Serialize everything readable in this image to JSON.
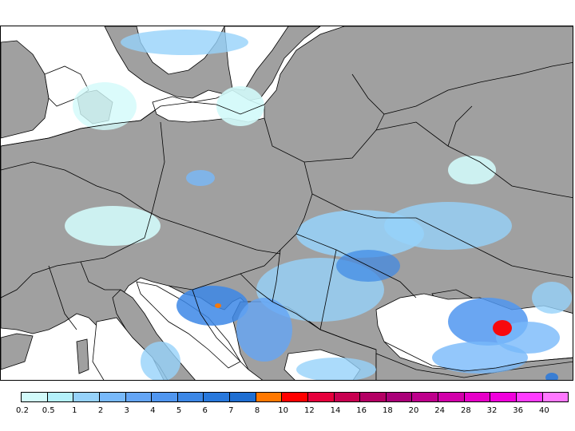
{
  "map": {
    "land_color": "#a0a0a0",
    "sea_color": "#ffffff",
    "border_color": "#000000"
  },
  "legend": {
    "labels": [
      "0.2",
      "0.5",
      "1",
      "2",
      "3",
      "4",
      "5",
      "6",
      "7",
      "8",
      "10",
      "12",
      "14",
      "16",
      "18",
      "20",
      "24",
      "28",
      "32",
      "36",
      "40"
    ],
    "colors": [
      "#d2fafa",
      "#b4f0fa",
      "#96d2fa",
      "#78b9fa",
      "#64a5f5",
      "#5096f0",
      "#3c87e6",
      "#2878dc",
      "#1e6ed2",
      "#ff7800",
      "#ff0000",
      "#e6003c",
      "#c80050",
      "#b40064",
      "#aa0078",
      "#be008c",
      "#d200aa",
      "#e600c8",
      "#f000dc",
      "#ff3cff",
      "#ff78ff"
    ]
  }
}
